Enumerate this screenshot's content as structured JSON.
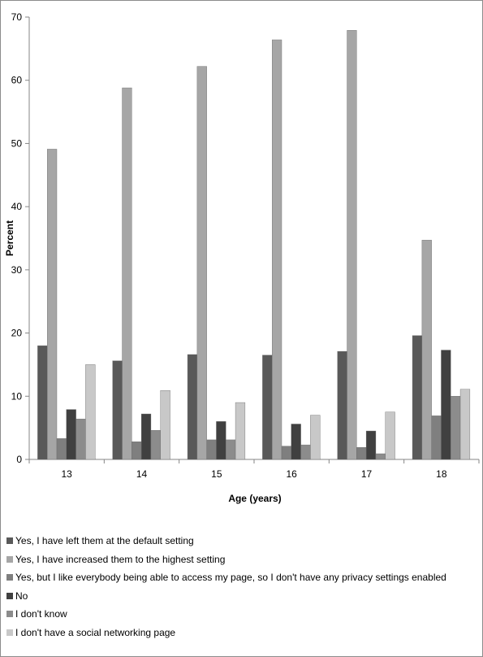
{
  "chart_data": {
    "type": "bar",
    "title": "",
    "xlabel": "Age (years)",
    "ylabel": "Percent",
    "ylim": [
      0,
      70
    ],
    "yticks": [
      0,
      10,
      20,
      30,
      40,
      50,
      60,
      70
    ],
    "grid": false,
    "legend_position": "bottom",
    "categories": [
      "13",
      "14",
      "15",
      "16",
      "17",
      "18"
    ],
    "series": [
      {
        "name": "Yes, I have left them at the default setting",
        "color": "#595959",
        "values": [
          18.0,
          15.6,
          16.6,
          16.5,
          17.1,
          19.6
        ]
      },
      {
        "name": "Yes, I have increased them to the highest setting",
        "color": "#a6a6a6",
        "values": [
          49.1,
          58.8,
          62.2,
          66.4,
          67.9,
          34.7
        ]
      },
      {
        "name": "Yes, but I like everybody being able to access my page, so I don't have any privacy settings enabled",
        "color": "#7f7f7f",
        "values": [
          3.3,
          2.8,
          3.1,
          2.1,
          1.9,
          6.9
        ]
      },
      {
        "name": "No",
        "color": "#404040",
        "values": [
          7.9,
          7.2,
          6.0,
          5.6,
          4.5,
          17.3
        ]
      },
      {
        "name": "I don't know",
        "color": "#8c8c8c",
        "values": [
          6.4,
          4.6,
          3.1,
          2.3,
          0.9,
          10.0
        ]
      },
      {
        "name": "I don't have a social networking page",
        "color": "#c8c8c8",
        "values": [
          15.0,
          10.9,
          9.0,
          7.0,
          7.5,
          11.1
        ]
      }
    ]
  }
}
